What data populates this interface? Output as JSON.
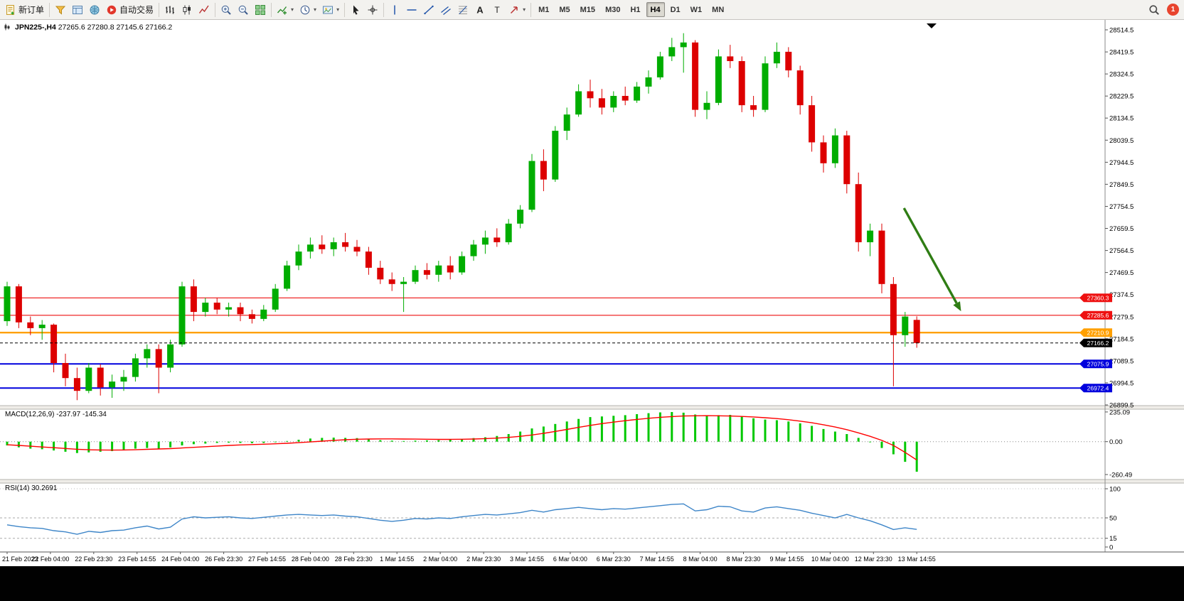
{
  "toolbar": {
    "groups": [
      {
        "items": [
          {
            "name": "new-order-button",
            "icon": "new-order",
            "label": "新订单"
          }
        ]
      },
      {
        "items": [
          {
            "name": "market-watch-button",
            "icon": "market-watch"
          },
          {
            "name": "data-window-button",
            "icon": "data-window"
          },
          {
            "name": "navigator-button",
            "icon": "navigator"
          },
          {
            "name": "auto-trading-button",
            "icon": "autotrade",
            "label": "自动交易"
          }
        ]
      },
      {
        "items": [
          {
            "name": "bar-chart-button",
            "icon": "bars"
          },
          {
            "name": "candlestick-chart-button",
            "icon": "candles"
          },
          {
            "name": "line-chart-button",
            "icon": "line-chart"
          }
        ]
      },
      {
        "items": [
          {
            "name": "zoom-in-button",
            "icon": "zoom-in"
          },
          {
            "name": "zoom-out-button",
            "icon": "zoom-out"
          },
          {
            "name": "tile-windows-button",
            "icon": "tile-windows"
          }
        ]
      },
      {
        "items": [
          {
            "name": "indicators-button",
            "icon": "indicators",
            "caret": true
          },
          {
            "name": "periods-button",
            "icon": "clock",
            "caret": true
          },
          {
            "name": "templates-button",
            "icon": "template",
            "caret": true
          }
        ]
      },
      {
        "items": [
          {
            "name": "cursor-button",
            "icon": "cursor"
          },
          {
            "name": "crosshair-button",
            "icon": "crosshair"
          }
        ]
      },
      {
        "items": [
          {
            "name": "vertical-line-button",
            "icon": "vline"
          },
          {
            "name": "horizontal-line-button",
            "icon": "hline"
          },
          {
            "name": "trendline-button",
            "icon": "trendline"
          },
          {
            "name": "equidistant-channel-button",
            "icon": "channel"
          },
          {
            "name": "fibonacci-button",
            "icon": "fibo"
          },
          {
            "name": "text-button",
            "icon": "text"
          },
          {
            "name": "text-label-button",
            "icon": "label"
          },
          {
            "name": "arrows-button",
            "icon": "arrows",
            "caret": true
          }
        ]
      }
    ],
    "timeframes": [
      "M1",
      "M5",
      "M15",
      "M30",
      "H1",
      "H4",
      "D1",
      "W1",
      "MN"
    ],
    "active_timeframe": "H4",
    "badge_count": "1"
  },
  "chart": {
    "symbol": "JPN225-,H4",
    "ohlc_text": "27265.6 27280.8 27145.6 27166.2",
    "price_axis": [
      "28514.5",
      "28419.5",
      "28324.5",
      "28229.5",
      "28134.5",
      "28039.5",
      "27944.5",
      "27849.5",
      "27754.5",
      "27659.5",
      "27564.5",
      "27469.5",
      "27374.5",
      "27279.5",
      "27184.5",
      "27089.5",
      "26994.5",
      "26899.5"
    ],
    "hlines": [
      {
        "name": "resistance-line-1",
        "price": 27360.3,
        "label": "27360.3",
        "color": "#ee1111",
        "width": 1.2
      },
      {
        "name": "resistance-line-2",
        "price": 27285.6,
        "label": "27285.6",
        "color": "#ee1111",
        "width": 1.2
      },
      {
        "name": "pivot-line",
        "price": 27210.9,
        "label": "27210.9",
        "color": "#ffa000",
        "width": 2.4
      },
      {
        "name": "support-line-1",
        "price": 27075.9,
        "label": "27075.9",
        "color": "#0000dd",
        "width": 2
      },
      {
        "name": "support-line-2",
        "price": 26972.4,
        "label": "26972.4",
        "color": "#0000dd",
        "width": 2
      }
    ],
    "bid_line": {
      "price": 27166.2,
      "label": "27166.2",
      "color": "#000000"
    },
    "arrow": {
      "from_t": 76.9,
      "from_p": 27747,
      "to_t": 81.8,
      "to_p": 27303,
      "color": "#2f7d14"
    },
    "macd_label": "MACD(12,26,9) -237.97 -145.34",
    "macd_axis": [
      {
        "v": 235.09,
        "label": "235.09"
      },
      {
        "v": 0,
        "label": "0.00"
      },
      {
        "v": -260.49,
        "label": "-260.49"
      }
    ],
    "rsi_label": "RSI(14) 30.2691",
    "rsi_axis": [
      {
        "v": 100,
        "label": "100"
      },
      {
        "v": 50,
        "label": "50"
      },
      {
        "v": 15,
        "label": "15"
      },
      {
        "v": 0,
        "label": "0"
      }
    ],
    "rsi_levels": [
      50,
      15
    ],
    "time_labels": [
      "21 Feb 2023",
      "22 Feb 04:00",
      "22 Feb 23:30",
      "23 Feb 14:55",
      "24 Feb 04:00",
      "26 Feb 23:30",
      "27 Feb 14:55",
      "28 Feb 04:00",
      "28 Feb 23:30",
      "1 Mar 14:55",
      "2 Mar 04:00",
      "2 Mar 23:30",
      "3 Mar 14:55",
      "6 Mar 04:00",
      "6 Mar 23:30",
      "7 Mar 14:55",
      "8 Mar 04:00",
      "8 Mar 23:30",
      "9 Mar 14:55",
      "10 Mar 04:00",
      "12 Mar 23:30",
      "13 Mar 14:55"
    ]
  },
  "chart_data": {
    "type": "candlestick",
    "symbol": "JPN225-",
    "timeframe": "H4",
    "ylim": [
      26899.5,
      28514.5
    ],
    "up_color": "#00ad00",
    "down_color": "#dd0000",
    "candles": [
      [
        27260,
        27430,
        27240,
        27410
      ],
      [
        27410,
        27420,
        27230,
        27255
      ],
      [
        27255,
        27280,
        27200,
        27230
      ],
      [
        27230,
        27265,
        27180,
        27245
      ],
      [
        27245,
        27250,
        27040,
        27080
      ],
      [
        27080,
        27120,
        26980,
        27015
      ],
      [
        27015,
        27060,
        26920,
        26960
      ],
      [
        26960,
        27080,
        26950,
        27060
      ],
      [
        27060,
        27075,
        26940,
        26975
      ],
      [
        26975,
        27030,
        26930,
        27000
      ],
      [
        27000,
        27050,
        26960,
        27020
      ],
      [
        27020,
        27120,
        27000,
        27100
      ],
      [
        27100,
        27160,
        27060,
        27140
      ],
      [
        27140,
        27160,
        26950,
        27060
      ],
      [
        27060,
        27180,
        27040,
        27160
      ],
      [
        27160,
        27430,
        27150,
        27410
      ],
      [
        27410,
        27440,
        27260,
        27300
      ],
      [
        27300,
        27360,
        27280,
        27340
      ],
      [
        27340,
        27360,
        27290,
        27310
      ],
      [
        27310,
        27340,
        27280,
        27320
      ],
      [
        27320,
        27340,
        27260,
        27290
      ],
      [
        27290,
        27310,
        27250,
        27270
      ],
      [
        27270,
        27330,
        27260,
        27310
      ],
      [
        27310,
        27420,
        27300,
        27400
      ],
      [
        27400,
        27520,
        27390,
        27500
      ],
      [
        27500,
        27590,
        27480,
        27560
      ],
      [
        27560,
        27620,
        27530,
        27590
      ],
      [
        27590,
        27630,
        27550,
        27570
      ],
      [
        27570,
        27620,
        27540,
        27600
      ],
      [
        27600,
        27640,
        27560,
        27580
      ],
      [
        27580,
        27610,
        27540,
        27560
      ],
      [
        27560,
        27580,
        27460,
        27490
      ],
      [
        27490,
        27520,
        27420,
        27440
      ],
      [
        27440,
        27470,
        27390,
        27420
      ],
      [
        27420,
        27450,
        27300,
        27430
      ],
      [
        27430,
        27500,
        27420,
        27480
      ],
      [
        27480,
        27510,
        27440,
        27460
      ],
      [
        27460,
        27520,
        27430,
        27500
      ],
      [
        27500,
        27540,
        27440,
        27470
      ],
      [
        27470,
        27560,
        27460,
        27540
      ],
      [
        27540,
        27610,
        27520,
        27590
      ],
      [
        27590,
        27650,
        27550,
        27620
      ],
      [
        27620,
        27660,
        27580,
        27600
      ],
      [
        27600,
        27700,
        27590,
        27680
      ],
      [
        27680,
        27760,
        27660,
        27740
      ],
      [
        27740,
        27980,
        27730,
        27950
      ],
      [
        27950,
        28000,
        27820,
        27870
      ],
      [
        27870,
        28100,
        27860,
        28080
      ],
      [
        28080,
        28180,
        28040,
        28150
      ],
      [
        28150,
        28280,
        28140,
        28250
      ],
      [
        28250,
        28300,
        28180,
        28220
      ],
      [
        28220,
        28260,
        28150,
        28180
      ],
      [
        28180,
        28250,
        28160,
        28230
      ],
      [
        28230,
        28270,
        28190,
        28210
      ],
      [
        28210,
        28290,
        28200,
        28270
      ],
      [
        28270,
        28340,
        28240,
        28310
      ],
      [
        28310,
        28420,
        28300,
        28400
      ],
      [
        28400,
        28480,
        28380,
        28440
      ],
      [
        28440,
        28500,
        28330,
        28460
      ],
      [
        28460,
        28470,
        28140,
        28170
      ],
      [
        28170,
        28250,
        28130,
        28200
      ],
      [
        28200,
        28430,
        28190,
        28400
      ],
      [
        28400,
        28450,
        28350,
        28380
      ],
      [
        28380,
        28400,
        28160,
        28190
      ],
      [
        28190,
        28230,
        28140,
        28170
      ],
      [
        28170,
        28400,
        28160,
        28370
      ],
      [
        28370,
        28460,
        28350,
        28420
      ],
      [
        28420,
        28440,
        28310,
        28340
      ],
      [
        28340,
        28360,
        28150,
        28190
      ],
      [
        28190,
        28230,
        27990,
        28030
      ],
      [
        28030,
        28060,
        27900,
        27940
      ],
      [
        27940,
        28090,
        27920,
        28060
      ],
      [
        28060,
        28080,
        27810,
        27850
      ],
      [
        27850,
        27900,
        27560,
        27600
      ],
      [
        27600,
        27680,
        27540,
        27650
      ],
      [
        27650,
        27680,
        27380,
        27420
      ],
      [
        27420,
        27450,
        26980,
        27200
      ],
      [
        27200,
        27300,
        27150,
        27280
      ],
      [
        27265.6,
        27280.8,
        27145.6,
        27166.2
      ]
    ],
    "macd": {
      "hist_color": "#00c800",
      "signal_color": "#ff0000",
      "histogram": [
        -30,
        -45,
        -55,
        -60,
        -70,
        -80,
        -90,
        -85,
        -80,
        -75,
        -65,
        -55,
        -50,
        -55,
        -45,
        -30,
        -20,
        -15,
        -10,
        -8,
        -10,
        -12,
        -10,
        -5,
        5,
        15,
        25,
        30,
        32,
        30,
        28,
        20,
        12,
        8,
        5,
        8,
        10,
        12,
        15,
        20,
        28,
        35,
        45,
        60,
        80,
        105,
        120,
        140,
        160,
        180,
        195,
        200,
        205,
        210,
        218,
        226,
        232,
        235,
        230,
        215,
        205,
        210,
        212,
        200,
        185,
        175,
        170,
        160,
        145,
        125,
        100,
        80,
        60,
        30,
        -5,
        -50,
        -100,
        -160,
        -238
      ],
      "signal": [
        -25,
        -30,
        -36,
        -42,
        -48,
        -54,
        -60,
        -64,
        -66,
        -67,
        -66,
        -64,
        -61,
        -58,
        -55,
        -50,
        -45,
        -40,
        -35,
        -30,
        -26,
        -23,
        -20,
        -17,
        -13,
        -8,
        -2,
        4,
        10,
        15,
        19,
        21,
        22,
        22,
        21,
        20,
        19,
        18,
        18,
        19,
        21,
        24,
        28,
        34,
        42,
        53,
        66,
        81,
        97,
        113,
        129,
        143,
        155,
        166,
        176,
        185,
        193,
        199,
        203,
        205,
        206,
        205,
        203,
        200,
        196,
        190,
        183,
        174,
        163,
        150,
        134,
        116,
        95,
        70,
        42,
        10,
        -30,
        -85,
        -145
      ]
    },
    "rsi": {
      "color": "#3d85c8",
      "values": [
        38,
        35,
        33,
        32,
        28,
        26,
        22,
        27,
        25,
        28,
        29,
        33,
        36,
        31,
        34,
        48,
        52,
        50,
        51,
        52,
        50,
        49,
        51,
        53,
        55,
        56,
        55,
        54,
        55,
        53,
        52,
        49,
        46,
        44,
        46,
        49,
        48,
        50,
        49,
        52,
        54,
        56,
        55,
        57,
        59,
        63,
        60,
        64,
        66,
        68,
        66,
        64,
        66,
        65,
        67,
        69,
        71,
        73,
        74,
        62,
        64,
        70,
        69,
        62,
        60,
        67,
        69,
        66,
        63,
        58,
        54,
        50,
        56,
        50,
        45,
        38,
        30,
        33,
        30.27
      ]
    }
  }
}
